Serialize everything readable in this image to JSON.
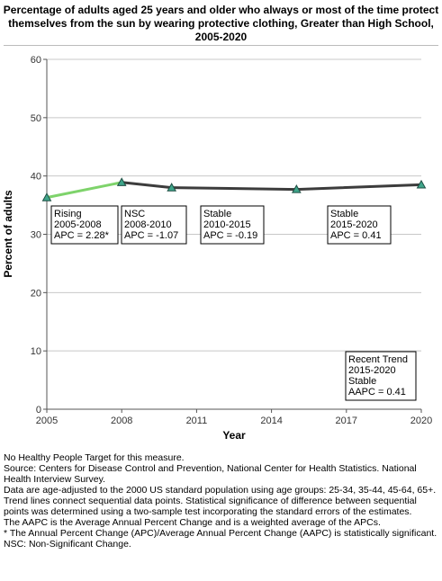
{
  "chart_data": {
    "type": "line",
    "title": "Percentage of adults aged 25 years and older who always or most of the time protect themselves from the sun by wearing protective clothing, Greater than High School,  2005-2020",
    "xlabel": "Year",
    "ylabel": "Percent of adults",
    "xlim": [
      2005,
      2020
    ],
    "ylim": [
      0,
      60
    ],
    "x_ticks": [
      "2005",
      "2008",
      "2011",
      "2014",
      "2017",
      "2020"
    ],
    "y_ticks": [
      "0",
      "10",
      "20",
      "30",
      "40",
      "50",
      "60"
    ],
    "grid": "horizontal",
    "points": [
      {
        "x": 2005,
        "y": 36.3
      },
      {
        "x": 2008,
        "y": 38.9
      },
      {
        "x": 2010,
        "y": 38.0
      },
      {
        "x": 2015,
        "y": 37.7
      },
      {
        "x": 2020,
        "y": 38.5
      }
    ],
    "segments": [
      {
        "from": 2005,
        "to": 2008,
        "color": "#7ed36b",
        "label": [
          "Rising",
          "2005-2008",
          "APC =  2.28*"
        ]
      },
      {
        "from": 2008,
        "to": 2010,
        "color": "#3c3c3c",
        "label": [
          "NSC",
          "2008-2010",
          "APC = -1.07"
        ]
      },
      {
        "from": 2010,
        "to": 2015,
        "color": "#3c3c3c",
        "label": [
          "Stable",
          "2010-2015",
          "APC = -0.19"
        ]
      },
      {
        "from": 2015,
        "to": 2020,
        "color": "#3c3c3c",
        "label": [
          "Stable",
          "2015-2020",
          "APC =  0.41"
        ]
      }
    ],
    "recent_trend": [
      "Recent Trend",
      "2015-2020",
      "Stable",
      "AAPC =  0.41"
    ],
    "marker_color": "#3fa58a"
  },
  "notes": [
    "No Healthy People Target for this measure.",
    "Source: Centers for Disease Control and Prevention, National Center for Health Statistics. National Health Interview Survey.",
    "Data are age-adjusted to the 2000 US standard population using age groups: 25-34, 35-44, 45-64, 65+.",
    "Trend lines connect sequential data points. Statistical significance of difference between sequential points was determined using a two-sample test incorporating the standard errors of the estimates.",
    "The AAPC is the Average Annual Percent Change and is a weighted average of the APCs.",
    "* The Annual Percent Change (APC)/Average Annual Percent Change (AAPC) is statistically significant.",
    "NSC: Non-Significant Change."
  ]
}
